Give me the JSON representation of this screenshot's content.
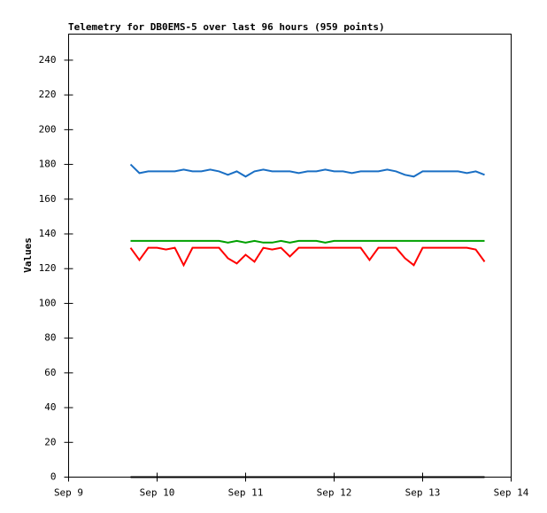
{
  "chart_data": {
    "type": "line",
    "title": "Telemetry for DB0EMS-5 over last 96 hours (959 points)",
    "y_label": "Values",
    "x": [
      9.7,
      9.8,
      9.9,
      10.0,
      10.1,
      10.2,
      10.3,
      10.4,
      10.5,
      10.6,
      10.7,
      10.8,
      10.9,
      11.0,
      11.1,
      11.2,
      11.3,
      11.4,
      11.5,
      11.6,
      11.7,
      11.8,
      11.9,
      12.0,
      12.1,
      12.2,
      12.3,
      12.4,
      12.5,
      12.6,
      12.7,
      12.8,
      12.9,
      13.0,
      13.1,
      13.2,
      13.3,
      13.4,
      13.5,
      13.6,
      13.7
    ],
    "series": [
      {
        "color": "#1a6fc4",
        "values": [
          180,
          175,
          176,
          176,
          176,
          176,
          177,
          176,
          176,
          177,
          176,
          174,
          176,
          173,
          176,
          177,
          176,
          176,
          176,
          175,
          176,
          176,
          177,
          176,
          176,
          175,
          176,
          176,
          176,
          177,
          176,
          174,
          173,
          176,
          176,
          176,
          176,
          176,
          175,
          176,
          174
        ]
      },
      {
        "color": "#00a000",
        "values": [
          136,
          136,
          136,
          136,
          136,
          136,
          136,
          136,
          136,
          136,
          136,
          135,
          136,
          135,
          136,
          135,
          135,
          136,
          135,
          136,
          136,
          136,
          135,
          136,
          136,
          136,
          136,
          136,
          136,
          136,
          136,
          136,
          136,
          136,
          136,
          136,
          136,
          136,
          136,
          136,
          136
        ]
      },
      {
        "color": "#ff0000",
        "values": [
          132,
          125,
          132,
          132,
          131,
          132,
          122,
          132,
          132,
          132,
          132,
          126,
          123,
          128,
          124,
          132,
          131,
          132,
          127,
          132,
          132,
          132,
          132,
          132,
          132,
          132,
          132,
          125,
          132,
          132,
          132,
          126,
          122,
          132,
          132,
          132,
          132,
          132,
          132,
          131,
          124
        ]
      },
      {
        "color": "#000000",
        "values": [
          0,
          0,
          0,
          0,
          0,
          0,
          0,
          0,
          0,
          0,
          0,
          0,
          0,
          0,
          0,
          0,
          0,
          0,
          0,
          0,
          0,
          0,
          0,
          0,
          0,
          0,
          0,
          0,
          0,
          0,
          0,
          0,
          0,
          0,
          0,
          0,
          0,
          0,
          0,
          0,
          0
        ]
      }
    ],
    "xlim": [
      9,
      14
    ],
    "xticks": [
      {
        "value": 9,
        "label": "Sep 9"
      },
      {
        "value": 10,
        "label": "Sep 10"
      },
      {
        "value": 11,
        "label": "Sep 11"
      },
      {
        "value": 12,
        "label": "Sep 12"
      },
      {
        "value": 13,
        "label": "Sep 13"
      },
      {
        "value": 14,
        "label": "Sep 14"
      }
    ],
    "ylim": [
      0,
      255
    ],
    "yticks": [
      0,
      20,
      40,
      60,
      80,
      100,
      120,
      140,
      160,
      180,
      200,
      220,
      240
    ],
    "grid": false
  }
}
